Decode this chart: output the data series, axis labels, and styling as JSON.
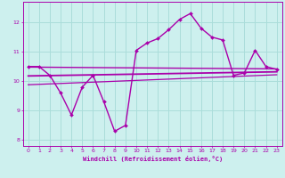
{
  "xlabel": "Windchill (Refroidissement éolien,°C)",
  "bg_color": "#cdf0ee",
  "grid_color": "#aaddda",
  "line_color": "#aa00aa",
  "xlim": [
    -0.5,
    23.5
  ],
  "ylim": [
    7.8,
    12.7
  ],
  "yticks": [
    8,
    9,
    10,
    11,
    12
  ],
  "xticks": [
    0,
    1,
    2,
    3,
    4,
    5,
    6,
    7,
    8,
    9,
    10,
    11,
    12,
    13,
    14,
    15,
    16,
    17,
    18,
    19,
    20,
    21,
    22,
    23
  ],
  "hours": [
    0,
    1,
    2,
    3,
    4,
    5,
    6,
    7,
    8,
    9,
    10,
    11,
    12,
    13,
    14,
    15,
    16,
    17,
    18,
    19,
    20,
    21,
    22,
    23
  ],
  "windchill": [
    10.5,
    10.5,
    10.2,
    9.6,
    8.85,
    9.8,
    10.2,
    9.3,
    8.3,
    8.5,
    11.05,
    11.3,
    11.45,
    11.75,
    12.1,
    12.3,
    11.8,
    11.5,
    11.4,
    10.2,
    10.28,
    11.05,
    10.5,
    10.4
  ],
  "trend1_x": [
    0,
    23
  ],
  "trend1_y": [
    10.48,
    10.42
  ],
  "trend2_x": [
    0,
    23
  ],
  "trend2_y": [
    10.18,
    10.32
  ],
  "trend3_x": [
    0,
    23
  ],
  "trend3_y": [
    9.88,
    10.22
  ]
}
